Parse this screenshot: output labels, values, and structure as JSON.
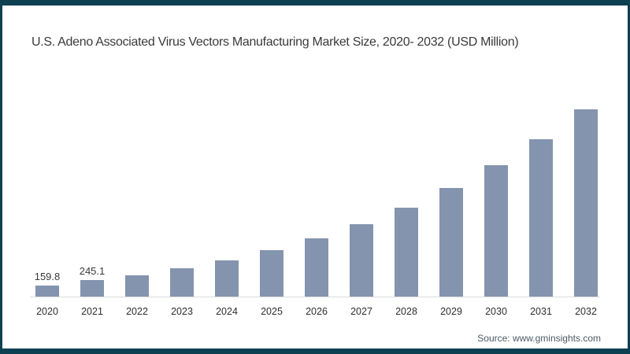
{
  "title": "U.S. Adeno Associated Virus Vectors Manufacturing Market Size, 2020- 2032 (USD Million)",
  "source": "Source: www.gminsights.com",
  "colors": {
    "bar": "#8494ae",
    "frame": "#0d4051",
    "axis": "#dcdcdc"
  },
  "chart_data": {
    "type": "bar",
    "title": "U.S. Adeno Associated Virus Vectors Manufacturing Market Size, 2020- 2032 (USD Million)",
    "categories": [
      "2020",
      "2021",
      "2022",
      "2023",
      "2024",
      "2025",
      "2026",
      "2027",
      "2028",
      "2029",
      "2030",
      "2031",
      "2032"
    ],
    "values": [
      159.8,
      245.1,
      315,
      420,
      540,
      690,
      870,
      1080,
      1330,
      1620,
      1965,
      2350,
      2795
    ],
    "shown_value_labels": [
      "159.8",
      "245.1",
      "",
      "",
      "",
      "",
      "",
      "",
      "",
      "",
      "",
      "",
      ""
    ],
    "xlabel": "",
    "ylabel": "USD Million",
    "ylim": [
      0,
      2900
    ],
    "grid": false,
    "legend": false,
    "units": "USD Million"
  }
}
